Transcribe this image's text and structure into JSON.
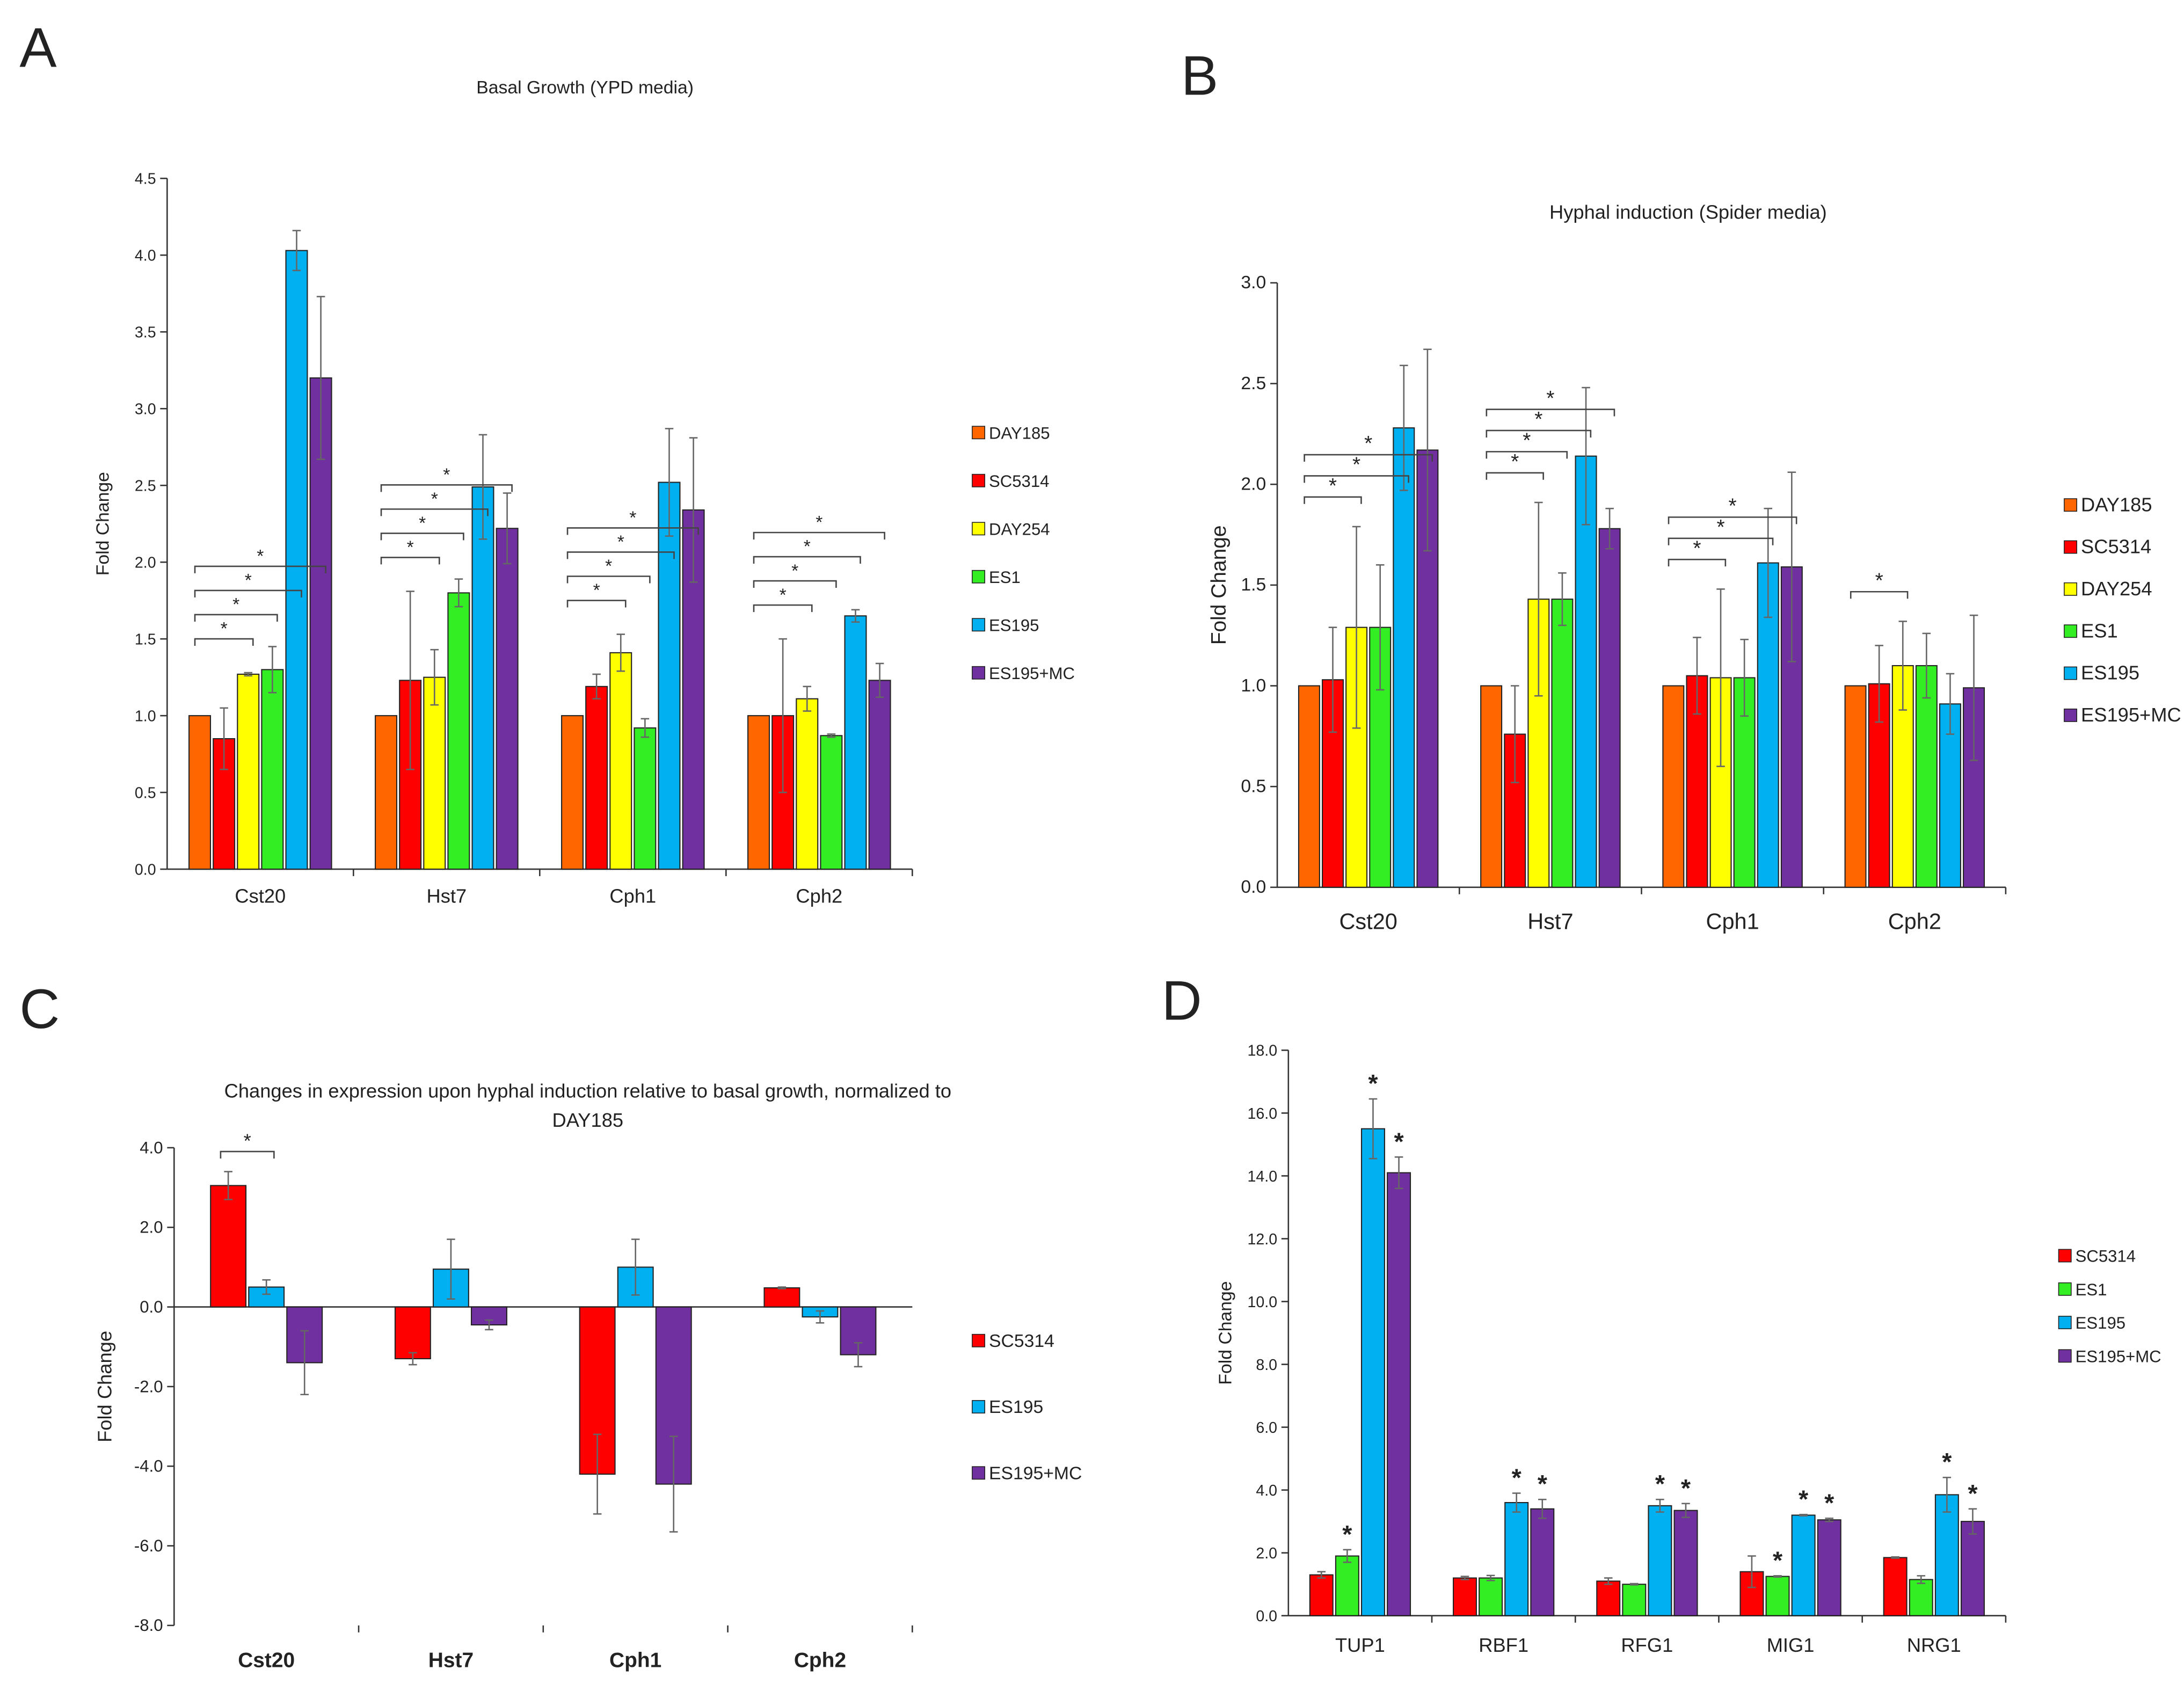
{
  "panel_letters": [
    "A",
    "B",
    "C",
    "D"
  ],
  "colors": {
    "DAY185": "#ff6600",
    "SC5314": "#ff0000",
    "DAY254": "#ffff00",
    "ES1": "#33ee22",
    "ES195": "#00b0f0",
    "ES195+MC": "#7030a0"
  },
  "chart_data": [
    {
      "type": "bar",
      "title": "Basal Growth (YPD media)",
      "ylabel": "Fold Change",
      "xlabel": "",
      "ylim": [
        0,
        4.5
      ],
      "yticks": [
        "0.0",
        "0.5",
        "1.0",
        "1.5",
        "2.0",
        "2.5",
        "3.0",
        "3.5",
        "4.0",
        "4.5"
      ],
      "legend_position": "right",
      "categories": [
        "Cst20",
        "Hst7",
        "Cph1",
        "Cph2"
      ],
      "series": [
        {
          "name": "DAY185",
          "values": [
            1.0,
            1.0,
            1.0,
            1.0
          ],
          "errors": [
            0,
            0,
            0,
            0
          ]
        },
        {
          "name": "SC5314",
          "values": [
            0.85,
            1.23,
            1.19,
            1.0
          ],
          "errors": [
            0.2,
            0.58,
            0.08,
            0.5
          ]
        },
        {
          "name": "DAY254",
          "values": [
            1.27,
            1.25,
            1.41,
            1.11
          ],
          "errors": [
            0.01,
            0.18,
            0.12,
            0.08
          ]
        },
        {
          "name": "ES1",
          "values": [
            1.3,
            1.8,
            0.92,
            0.87
          ],
          "errors": [
            0.15,
            0.09,
            0.06,
            0.01
          ]
        },
        {
          "name": "ES195",
          "values": [
            4.03,
            2.49,
            2.52,
            1.65
          ],
          "errors": [
            0.13,
            0.34,
            0.35,
            0.04
          ]
        },
        {
          "name": "ES195+MC",
          "values": [
            3.2,
            2.22,
            2.34,
            1.23
          ],
          "errors": [
            0.53,
            0.23,
            0.47,
            0.11
          ]
        }
      ],
      "significance": [
        {
          "category": 0,
          "pairs": [
            [
              0,
              2
            ],
            [
              0,
              3
            ],
            [
              0,
              4
            ],
            [
              0,
              5
            ]
          ]
        },
        {
          "category": 1,
          "pairs": [
            [
              0,
              2
            ],
            [
              0,
              3
            ],
            [
              0,
              4
            ],
            [
              0,
              5
            ]
          ]
        },
        {
          "category": 2,
          "pairs": [
            [
              0,
              2
            ],
            [
              0,
              3
            ],
            [
              0,
              4
            ],
            [
              0,
              5
            ]
          ]
        },
        {
          "category": 3,
          "pairs": [
            [
              0,
              2
            ],
            [
              0,
              3
            ],
            [
              0,
              4
            ],
            [
              0,
              5
            ]
          ]
        }
      ],
      "sig_label": "*"
    },
    {
      "type": "bar",
      "title": "Hyphal induction (Spider media)",
      "ylabel": "Fold Change",
      "xlabel": "",
      "ylim": [
        0,
        3.0
      ],
      "yticks": [
        "0.0",
        "0.5",
        "1.0",
        "1.5",
        "2.0",
        "2.5",
        "3.0"
      ],
      "legend_position": "right",
      "categories": [
        "Cst20",
        "Hst7",
        "Cph1",
        "Cph2"
      ],
      "series": [
        {
          "name": "DAY185",
          "values": [
            1.0,
            1.0,
            1.0,
            1.0
          ],
          "errors": [
            0,
            0,
            0,
            0
          ]
        },
        {
          "name": "SC5314",
          "values": [
            1.03,
            0.76,
            1.05,
            1.01
          ],
          "errors": [
            0.26,
            0.24,
            0.19,
            0.19
          ]
        },
        {
          "name": "DAY254",
          "values": [
            1.29,
            1.43,
            1.04,
            1.1
          ],
          "errors": [
            0.5,
            0.48,
            0.44,
            0.22
          ]
        },
        {
          "name": "ES1",
          "values": [
            1.29,
            1.43,
            1.04,
            1.1
          ],
          "errors": [
            0.31,
            0.13,
            0.19,
            0.16
          ]
        },
        {
          "name": "ES195",
          "values": [
            2.28,
            2.14,
            1.61,
            0.91
          ],
          "errors": [
            0.31,
            0.34,
            0.27,
            0.15
          ]
        },
        {
          "name": "ES195+MC",
          "values": [
            2.17,
            1.78,
            1.59,
            0.99
          ],
          "errors": [
            0.5,
            0.1,
            0.47,
            0.36
          ]
        }
      ],
      "significance": [
        {
          "category": 0,
          "pairs": [
            [
              0,
              2
            ],
            [
              0,
              4
            ],
            [
              0,
              5
            ]
          ]
        },
        {
          "category": 1,
          "pairs": [
            [
              0,
              2
            ],
            [
              0,
              3
            ],
            [
              0,
              4
            ],
            [
              0,
              5
            ]
          ]
        },
        {
          "category": 2,
          "pairs": [
            [
              0,
              2
            ],
            [
              0,
              4
            ],
            [
              0,
              5
            ]
          ]
        },
        {
          "category": 3,
          "pairs": [
            [
              0,
              2
            ]
          ]
        }
      ],
      "sig_label": "*"
    },
    {
      "type": "bar",
      "title": "Changes in expression upon hyphal induction relative to basal growth, normalized to",
      "title_line2": "DAY185",
      "ylabel": "Fold Change",
      "xlabel": "",
      "ylim": [
        -8.0,
        4.0
      ],
      "yticks": [
        "-8.0",
        "-6.0",
        "-4.0",
        "-2.0",
        "0.0",
        "2.0",
        "4.0"
      ],
      "legend_position": "right",
      "categories": [
        "Cst20",
        "Hst7",
        "Cph1",
        "Cph2"
      ],
      "series": [
        {
          "name": "SC5314",
          "values": [
            3.05,
            -1.3,
            -4.2,
            0.48
          ],
          "errors": [
            0.35,
            0.15,
            1.0,
            0.02
          ]
        },
        {
          "name": "ES195",
          "values": [
            0.5,
            0.95,
            1.0,
            -0.25
          ],
          "errors": [
            0.18,
            0.75,
            0.7,
            0.15
          ]
        },
        {
          "name": "ES195+MC",
          "values": [
            -1.4,
            -0.45,
            -4.45,
            -1.2
          ],
          "errors": [
            0.8,
            0.12,
            1.2,
            0.3
          ]
        }
      ],
      "significance": [
        {
          "category": 0,
          "pairs": [
            [
              0,
              1
            ]
          ]
        }
      ],
      "sig_label": "*"
    },
    {
      "type": "bar",
      "title": "",
      "ylabel": "Fold Change",
      "xlabel": "",
      "ylim": [
        0,
        18.0
      ],
      "yticks": [
        "0.0",
        "2.0",
        "4.0",
        "6.0",
        "8.0",
        "10.0",
        "12.0",
        "14.0",
        "16.0",
        "18.0"
      ],
      "legend_position": "right",
      "categories": [
        "TUP1",
        "RBF1",
        "RFG1",
        "MIG1",
        "NRG1"
      ],
      "series": [
        {
          "name": "SC5314",
          "values": [
            1.3,
            1.2,
            1.1,
            1.4,
            1.85
          ],
          "errors": [
            0.1,
            0.05,
            0.1,
            0.5,
            0.02
          ]
        },
        {
          "name": "ES1",
          "values": [
            1.9,
            1.2,
            1.0,
            1.25,
            1.15
          ],
          "errors": [
            0.2,
            0.08,
            0.02,
            0.02,
            0.12
          ]
        },
        {
          "name": "ES195",
          "values": [
            15.5,
            3.6,
            3.5,
            3.2,
            3.85
          ],
          "errors": [
            0.95,
            0.3,
            0.2,
            0.02,
            0.55
          ]
        },
        {
          "name": "ES195+MC",
          "values": [
            14.1,
            3.4,
            3.35,
            3.05,
            3.0
          ],
          "errors": [
            0.5,
            0.3,
            0.22,
            0.05,
            0.4
          ]
        }
      ],
      "bar_stars": [
        [
          1,
          2,
          3
        ],
        [
          2,
          3
        ],
        [
          2,
          3
        ],
        [
          1,
          2,
          3
        ],
        [
          2,
          3
        ]
      ],
      "sig_label": "*"
    }
  ]
}
